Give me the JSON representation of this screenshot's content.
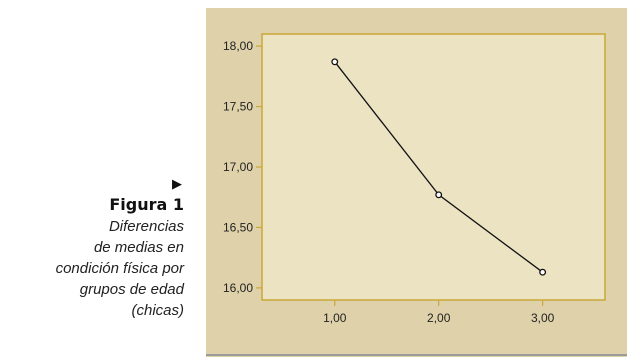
{
  "caption": {
    "arrow": "▶",
    "title": "Figura 1",
    "description_lines": [
      "Diferencias",
      "de medias en",
      "condición física por",
      "grupos de edad",
      "(chicas)"
    ]
  },
  "colors": {
    "panel_background": "#dfd2aa",
    "plot_background": "#ece3c3",
    "frame": "#c9a836",
    "line": "#111111"
  },
  "chart_data": {
    "type": "line",
    "title": "",
    "xlabel": "",
    "ylabel": "",
    "x": [
      1.0,
      2.0,
      3.0
    ],
    "values": [
      17.87,
      16.77,
      16.13
    ],
    "xlim": [
      0.3,
      3.6
    ],
    "ylim": [
      15.9,
      18.1
    ],
    "x_ticks": [
      "1,00",
      "2,00",
      "3,00"
    ],
    "y_ticks": [
      "18,00",
      "17,50",
      "17,00",
      "16,50",
      "16,00"
    ],
    "y_tick_values": [
      18.0,
      17.5,
      17.0,
      16.5,
      16.0
    ],
    "x_tick_values": [
      1.0,
      2.0,
      3.0
    ],
    "markers": "open-circle",
    "grid": false
  }
}
